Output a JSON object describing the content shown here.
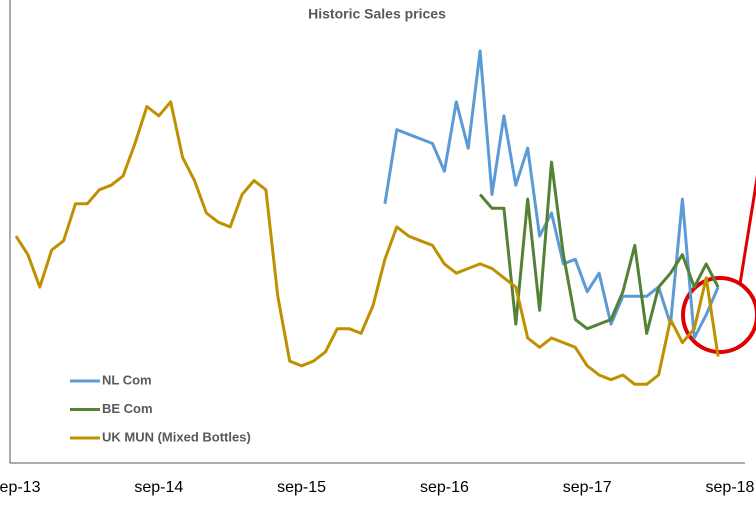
{
  "chart_data": {
    "type": "line",
    "title": "Historic Sales prices",
    "categories": [
      "sep-13",
      null,
      null,
      null,
      null,
      null,
      null,
      null,
      null,
      null,
      null,
      null,
      "sep-14",
      null,
      null,
      null,
      null,
      null,
      null,
      null,
      null,
      null,
      null,
      null,
      "sep-15",
      null,
      null,
      null,
      null,
      null,
      null,
      null,
      null,
      null,
      null,
      null,
      "sep-16",
      null,
      null,
      null,
      null,
      null,
      null,
      null,
      null,
      null,
      null,
      null,
      "sep-17",
      null,
      null,
      null,
      null,
      null,
      null,
      null,
      null,
      null,
      null,
      null,
      "sep-18"
    ],
    "series": [
      {
        "name": "NL Com",
        "color": "#5b9bd5",
        "values": [
          null,
          null,
          null,
          null,
          null,
          null,
          null,
          null,
          null,
          null,
          null,
          null,
          null,
          null,
          null,
          null,
          null,
          null,
          null,
          null,
          null,
          null,
          null,
          null,
          null,
          null,
          null,
          null,
          null,
          null,
          null,
          56,
          72,
          71,
          70,
          69,
          63,
          78,
          68,
          89,
          58,
          75,
          60,
          68,
          49,
          54,
          43,
          44,
          37,
          41,
          30,
          36,
          36,
          36,
          38,
          30,
          57,
          27,
          32,
          38,
          null
        ]
      },
      {
        "name": "BE Com",
        "color": "#548235",
        "values": [
          null,
          null,
          null,
          null,
          null,
          null,
          null,
          null,
          null,
          null,
          null,
          null,
          null,
          null,
          null,
          null,
          null,
          null,
          null,
          null,
          null,
          null,
          null,
          null,
          null,
          null,
          null,
          null,
          null,
          null,
          null,
          null,
          null,
          null,
          null,
          null,
          null,
          null,
          null,
          58,
          55,
          55,
          30,
          57,
          33,
          65,
          45,
          31,
          29,
          30,
          31,
          37,
          47,
          28,
          38,
          41,
          45,
          38,
          43,
          38,
          null
        ]
      },
      {
        "name": "UK MUN (Mixed Bottles)",
        "color": "#bf9000",
        "values": [
          49,
          45,
          38,
          46,
          48,
          56,
          56,
          59,
          60,
          62,
          69,
          77,
          75,
          78,
          66,
          61,
          54,
          52,
          51,
          58,
          61,
          59,
          36,
          22,
          21,
          22,
          24,
          29,
          29,
          28,
          34,
          44,
          51,
          49,
          48,
          47,
          43,
          41,
          42,
          43,
          42,
          40,
          38,
          27,
          25,
          27,
          26,
          25,
          21,
          19,
          18,
          19,
          17,
          17,
          19,
          31,
          26,
          29,
          40,
          23,
          null
        ]
      }
    ],
    "ylim": [
      0,
      100
    ]
  }
}
